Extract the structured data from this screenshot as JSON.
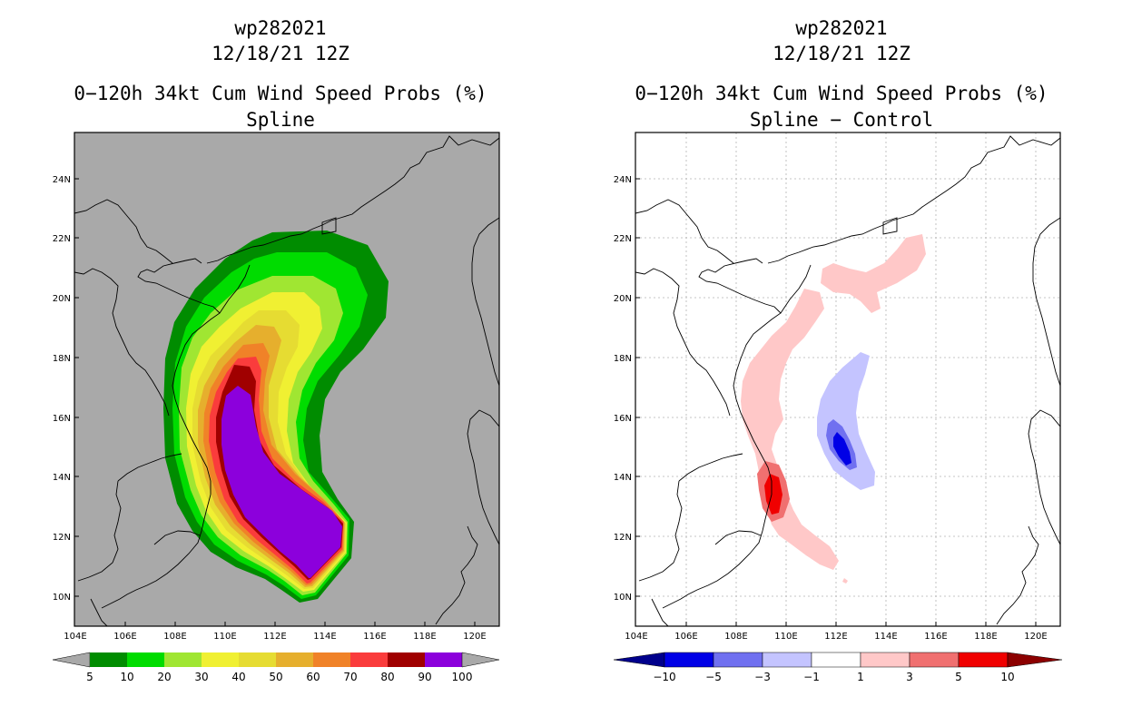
{
  "left_panel": {
    "storm_id": "wp282021",
    "datetime": "12/18/21 12Z",
    "product": "0−120h 34kt Cum Wind Speed Probs (%)",
    "subtitle": "Spline",
    "map": {
      "lat_labels": [
        "24N",
        "22N",
        "20N",
        "18N",
        "16N",
        "14N",
        "12N",
        "10N"
      ],
      "lon_labels": [
        "104E",
        "106E",
        "108E",
        "110E",
        "112E",
        "114E",
        "116E",
        "118E",
        "120E"
      ]
    },
    "colorbar": {
      "labels": [
        "5",
        "10",
        "20",
        "30",
        "40",
        "50",
        "60",
        "70",
        "80",
        "90",
        "100"
      ],
      "colors": [
        "#008c00",
        "#00dc00",
        "#a0e632",
        "#f0f032",
        "#e6dc32",
        "#e6af2d",
        "#f08228",
        "#fa3c3c",
        "#a00000",
        "#8c00dc"
      ]
    }
  },
  "right_panel": {
    "storm_id": "wp282021",
    "datetime": "12/18/21 12Z",
    "product": "0−120h 34kt Cum Wind Speed Probs (%)",
    "subtitle": "Spline − Control",
    "map": {
      "lat_labels": [
        "24N",
        "22N",
        "20N",
        "18N",
        "16N",
        "14N",
        "12N",
        "10N"
      ],
      "lon_labels": [
        "104E",
        "106E",
        "108E",
        "110E",
        "112E",
        "114E",
        "116E",
        "118E",
        "120E"
      ]
    },
    "colorbar": {
      "labels": [
        "−10",
        "−5",
        "−3",
        "−1",
        "1",
        "3",
        "5",
        "10"
      ],
      "colors": [
        "#00008c",
        "#0000e6",
        "#7070f0",
        "#c4c4ff",
        "#ffffff",
        "#ffc8c8",
        "#f07070",
        "#f00000",
        "#8c0000"
      ]
    }
  }
}
